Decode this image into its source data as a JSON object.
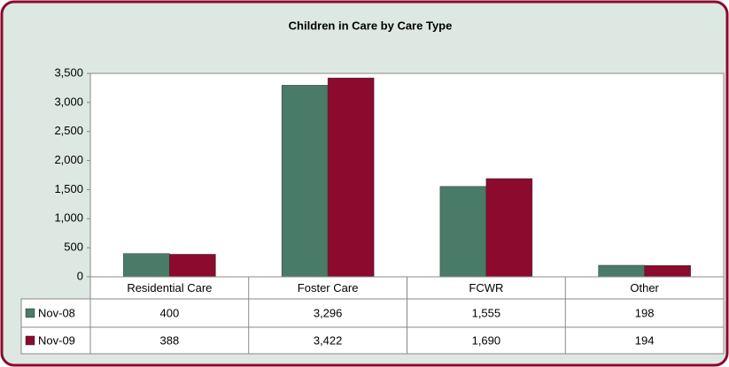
{
  "chart_data": {
    "type": "bar",
    "title": "Children in Care by Care Type",
    "categories": [
      "Residential Care",
      "Foster Care",
      "FCWR",
      "Other"
    ],
    "series": [
      {
        "name": "Nov-08",
        "color": "#4a7a68",
        "values": [
          400,
          3296,
          1555,
          198
        ],
        "value_labels": [
          "400",
          "3,296",
          "1,555",
          "198"
        ]
      },
      {
        "name": "Nov-09",
        "color": "#8b0a2e",
        "values": [
          388,
          3422,
          1690,
          194
        ],
        "value_labels": [
          "388",
          "3,422",
          "1,690",
          "194"
        ]
      }
    ],
    "ylim": [
      0,
      3500
    ],
    "yticks": [
      0,
      500,
      {
        "value": 1000,
        "label": "1,000"
      },
      {
        "value": 1500,
        "label": "1,500"
      },
      {
        "value": 2000,
        "label": "2,000"
      },
      {
        "value": 2500,
        "label": "2,500"
      },
      {
        "value": 3000,
        "label": "3,000"
      },
      {
        "value": 3500,
        "label": "3,500"
      }
    ],
    "grid": false
  }
}
